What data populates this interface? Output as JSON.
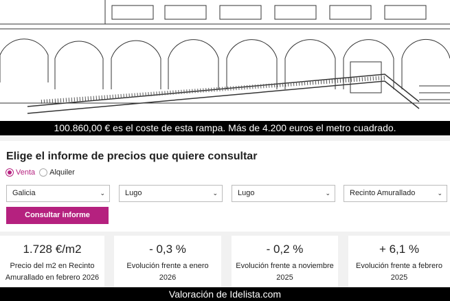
{
  "captions": {
    "top": "100.860,00 € es el coste de esta rampa. Más de 4.200 euros el metro cuadrado.",
    "bottom": "Valoración de Idelista.com"
  },
  "form": {
    "title": "Elige el informe de precios que quiere consultar",
    "radios": [
      {
        "label": "Venta",
        "checked": true
      },
      {
        "label": "Alquiler",
        "checked": false
      }
    ],
    "selects": [
      "Galicia",
      "Lugo",
      "Lugo",
      "Recinto Amurallado"
    ],
    "button": "Consultar informe"
  },
  "accent": "#b5217f",
  "cards": [
    {
      "value": "1.728 €/m2",
      "label": "Precio del m2 en Recinto Amurallado en febrero 2026"
    },
    {
      "value": "- 0,3 %",
      "label": "Evolución frente a enero 2026"
    },
    {
      "value": "- 0,2 %",
      "label": "Evolución frente a noviembre 2025"
    },
    {
      "value": "+ 6,1 %",
      "label": "Evolución frente a febrero 2025"
    }
  ]
}
